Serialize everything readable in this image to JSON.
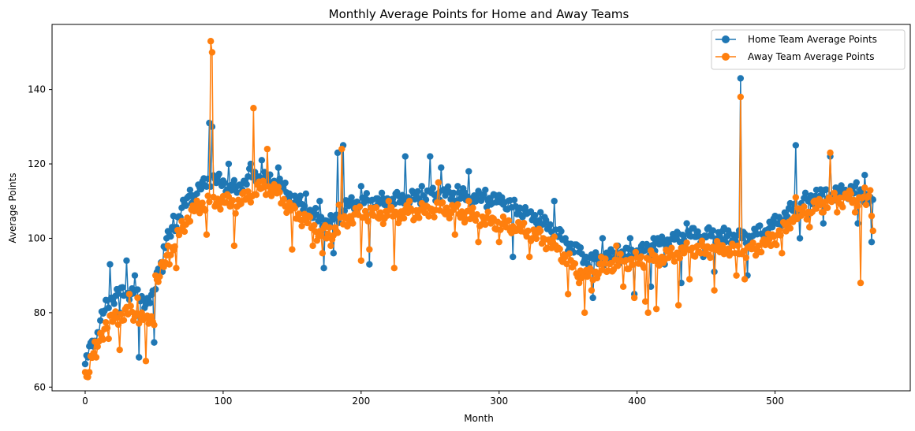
{
  "chart_data": {
    "type": "line",
    "title": "Monthly Average Points for Home and Away Teams",
    "xlabel": "Month",
    "ylabel": "Average Points",
    "xlim": [
      -24,
      598
    ],
    "ylim": [
      59,
      157.5
    ],
    "xticks": [
      0,
      100,
      200,
      300,
      400,
      500
    ],
    "yticks": [
      60,
      80,
      100,
      120,
      140
    ],
    "grid": false,
    "legend_position": "top-right",
    "marker": "circle",
    "series": [
      {
        "name": "Home Team Average Points",
        "color": "#1f77b4",
        "anchors": [
          [
            0,
            65
          ],
          [
            2,
            68
          ],
          [
            5,
            72
          ],
          [
            10,
            76
          ],
          [
            15,
            82
          ],
          [
            20,
            84
          ],
          [
            30,
            86
          ],
          [
            40,
            84
          ],
          [
            45,
            83
          ],
          [
            50,
            84
          ],
          [
            52,
            90
          ],
          [
            57,
            98
          ],
          [
            62,
            101
          ],
          [
            70,
            108
          ],
          [
            80,
            112
          ],
          [
            90,
            116
          ],
          [
            100,
            115
          ],
          [
            110,
            113
          ],
          [
            120,
            117
          ],
          [
            130,
            116
          ],
          [
            140,
            115
          ],
          [
            150,
            111
          ],
          [
            160,
            108
          ],
          [
            170,
            105
          ],
          [
            180,
            104
          ],
          [
            190,
            109
          ],
          [
            200,
            110
          ],
          [
            220,
            110
          ],
          [
            240,
            111
          ],
          [
            260,
            112
          ],
          [
            280,
            111
          ],
          [
            300,
            110
          ],
          [
            320,
            107
          ],
          [
            340,
            102
          ],
          [
            355,
            97
          ],
          [
            365,
            94
          ],
          [
            380,
            95
          ],
          [
            400,
            96
          ],
          [
            420,
            99
          ],
          [
            440,
            101
          ],
          [
            460,
            101
          ],
          [
            480,
            100
          ],
          [
            490,
            102
          ],
          [
            500,
            104
          ],
          [
            520,
            110
          ],
          [
            540,
            112
          ],
          [
            560,
            113
          ],
          [
            570,
            110
          ]
        ],
        "amplitude": 2.2,
        "spikes": [
          [
            3,
            71
          ],
          [
            8,
            72
          ],
          [
            18,
            93
          ],
          [
            25,
            80
          ],
          [
            30,
            94
          ],
          [
            36,
            90
          ],
          [
            39,
            68
          ],
          [
            50,
            72
          ],
          [
            56,
            91
          ],
          [
            64,
            106
          ],
          [
            76,
            113
          ],
          [
            90,
            131
          ],
          [
            92,
            130
          ],
          [
            104,
            120
          ],
          [
            120,
            120
          ],
          [
            128,
            121
          ],
          [
            140,
            119
          ],
          [
            160,
            112
          ],
          [
            170,
            110
          ],
          [
            173,
            92
          ],
          [
            180,
            96
          ],
          [
            183,
            123
          ],
          [
            187,
            125
          ],
          [
            200,
            114
          ],
          [
            206,
            93
          ],
          [
            214,
            110
          ],
          [
            225,
            112
          ],
          [
            232,
            122
          ],
          [
            244,
            114
          ],
          [
            250,
            122
          ],
          [
            258,
            119
          ],
          [
            270,
            114
          ],
          [
            278,
            118
          ],
          [
            290,
            113
          ],
          [
            302,
            111
          ],
          [
            310,
            95
          ],
          [
            322,
            107
          ],
          [
            330,
            107
          ],
          [
            340,
            110
          ],
          [
            348,
            100
          ],
          [
            357,
            98
          ],
          [
            368,
            84
          ],
          [
            375,
            100
          ],
          [
            386,
            98
          ],
          [
            395,
            100
          ],
          [
            398,
            85
          ],
          [
            410,
            87
          ],
          [
            412,
            100
          ],
          [
            420,
            93
          ],
          [
            428,
            100
          ],
          [
            432,
            88
          ],
          [
            436,
            104
          ],
          [
            448,
            95
          ],
          [
            456,
            91
          ],
          [
            464,
            99
          ],
          [
            475,
            143
          ],
          [
            480,
            90
          ],
          [
            492,
            100
          ],
          [
            500,
            106
          ],
          [
            515,
            125
          ],
          [
            518,
            100
          ],
          [
            525,
            103
          ],
          [
            530,
            113
          ],
          [
            535,
            104
          ],
          [
            540,
            122
          ],
          [
            547,
            113
          ],
          [
            555,
            114
          ],
          [
            560,
            104
          ],
          [
            565,
            117
          ],
          [
            570,
            99
          ]
        ]
      },
      {
        "name": "Away Team Average Points",
        "color": "#ff7f0e",
        "anchors": [
          [
            0,
            63
          ],
          [
            2,
            65
          ],
          [
            5,
            69
          ],
          [
            10,
            72
          ],
          [
            15,
            77
          ],
          [
            20,
            78
          ],
          [
            30,
            80
          ],
          [
            40,
            79
          ],
          [
            45,
            78
          ],
          [
            50,
            79
          ],
          [
            52,
            88
          ],
          [
            57,
            93
          ],
          [
            62,
            96
          ],
          [
            70,
            103
          ],
          [
            80,
            108
          ],
          [
            90,
            110
          ],
          [
            100,
            110
          ],
          [
            110,
            109
          ],
          [
            120,
            112
          ],
          [
            130,
            114
          ],
          [
            140,
            112
          ],
          [
            150,
            107
          ],
          [
            160,
            105
          ],
          [
            170,
            101
          ],
          [
            180,
            102
          ],
          [
            190,
            105
          ],
          [
            200,
            107
          ],
          [
            220,
            106
          ],
          [
            240,
            107
          ],
          [
            260,
            108
          ],
          [
            280,
            106
          ],
          [
            300,
            104
          ],
          [
            320,
            102
          ],
          [
            340,
            98
          ],
          [
            355,
            92
          ],
          [
            365,
            90
          ],
          [
            380,
            93
          ],
          [
            400,
            94
          ],
          [
            420,
            95
          ],
          [
            440,
            97
          ],
          [
            460,
            97
          ],
          [
            480,
            96
          ],
          [
            490,
            98
          ],
          [
            500,
            100
          ],
          [
            520,
            107
          ],
          [
            540,
            110
          ],
          [
            560,
            111
          ],
          [
            570,
            112
          ]
        ],
        "amplitude": 2.4,
        "spikes": [
          [
            3,
            64
          ],
          [
            8,
            68
          ],
          [
            17,
            73
          ],
          [
            25,
            70
          ],
          [
            32,
            85
          ],
          [
            38,
            84
          ],
          [
            44,
            67
          ],
          [
            48,
            79
          ],
          [
            51,
            90
          ],
          [
            60,
            98
          ],
          [
            66,
            92
          ],
          [
            91,
            153
          ],
          [
            92,
            150
          ],
          [
            88,
            101
          ],
          [
            108,
            98
          ],
          [
            122,
            135
          ],
          [
            132,
            124
          ],
          [
            150,
            97
          ],
          [
            165,
            98
          ],
          [
            172,
            96
          ],
          [
            175,
            100
          ],
          [
            178,
            98
          ],
          [
            184,
            109
          ],
          [
            186,
            124
          ],
          [
            200,
            94
          ],
          [
            206,
            97
          ],
          [
            220,
            110
          ],
          [
            224,
            92
          ],
          [
            235,
            110
          ],
          [
            250,
            108
          ],
          [
            256,
            115
          ],
          [
            268,
            101
          ],
          [
            278,
            110
          ],
          [
            285,
            99
          ],
          [
            300,
            99
          ],
          [
            312,
            102
          ],
          [
            322,
            95
          ],
          [
            330,
            102
          ],
          [
            342,
            97
          ],
          [
            350,
            85
          ],
          [
            358,
            88
          ],
          [
            362,
            80
          ],
          [
            367,
            86
          ],
          [
            374,
            95
          ],
          [
            378,
            91
          ],
          [
            385,
            98
          ],
          [
            390,
            87
          ],
          [
            398,
            84
          ],
          [
            406,
            83
          ],
          [
            408,
            80
          ],
          [
            414,
            81
          ],
          [
            418,
            95
          ],
          [
            430,
            82
          ],
          [
            434,
            96
          ],
          [
            438,
            89
          ],
          [
            446,
            96
          ],
          [
            456,
            86
          ],
          [
            464,
            97
          ],
          [
            472,
            90
          ],
          [
            475,
            138
          ],
          [
            478,
            89
          ],
          [
            482,
            98
          ],
          [
            498,
            101
          ],
          [
            505,
            96
          ],
          [
            512,
            105
          ],
          [
            515,
            111
          ],
          [
            525,
            103
          ],
          [
            530,
            108
          ],
          [
            535,
            107
          ],
          [
            540,
            123
          ],
          [
            545,
            107
          ],
          [
            552,
            111
          ],
          [
            558,
            107
          ],
          [
            562,
            88
          ],
          [
            566,
            109
          ],
          [
            570,
            106
          ],
          [
            571,
            102
          ]
        ]
      }
    ]
  }
}
